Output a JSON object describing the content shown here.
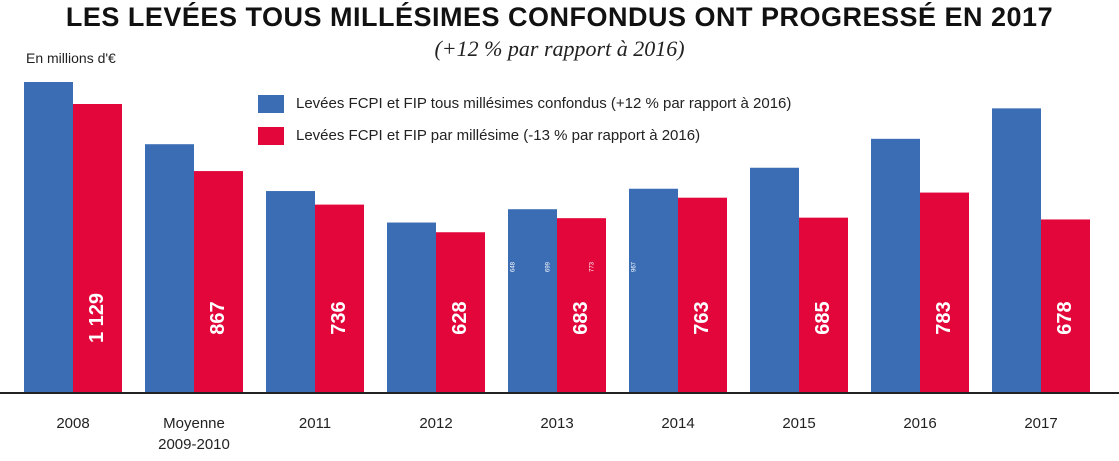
{
  "chart_data": {
    "type": "bar",
    "title": "LES LEVÉES TOUS MILLÉSIMES CONFONDUS ONT PROGRESSÉ EN 2017",
    "subtitle": "(+12 % par rapport à 2016)",
    "unit_label": "En millions d'€",
    "categories": [
      "2008",
      "Moyenne\n2009-2010",
      "2011",
      "2012",
      "2013",
      "2014",
      "2015",
      "2016",
      "2017"
    ],
    "series": [
      {
        "name": "Levées FCPI et FIP tous millésimes confondus (+12 % par rapport à 2016)",
        "color": "#3b6db5",
        "values": [
          1215,
          972,
          789,
          666,
          718,
          798,
          880,
          993,
          1112
        ]
      },
      {
        "name": "Levées FCPI et FIP par millésime (-13 % par rapport à 2016)",
        "color": "#e2063b",
        "values": [
          1129,
          867,
          736,
          628,
          683,
          763,
          685,
          783,
          678
        ],
        "labels": [
          "1 129",
          "867",
          "736",
          "628",
          "683",
          "763",
          "685",
          "783",
          "678"
        ]
      }
    ],
    "small_annotations": [
      {
        "category_index": 4,
        "series_index": 0,
        "text": "648"
      },
      {
        "category_index": 4,
        "series_index": 0,
        "text": "699",
        "offset": 1
      },
      {
        "category_index": 4,
        "series_index": 1,
        "text": "773"
      },
      {
        "category_index": 5,
        "series_index": 0,
        "text": "967"
      }
    ],
    "legend_position": "top-center",
    "ylim": [
      0,
      1215
    ],
    "grid": false
  }
}
